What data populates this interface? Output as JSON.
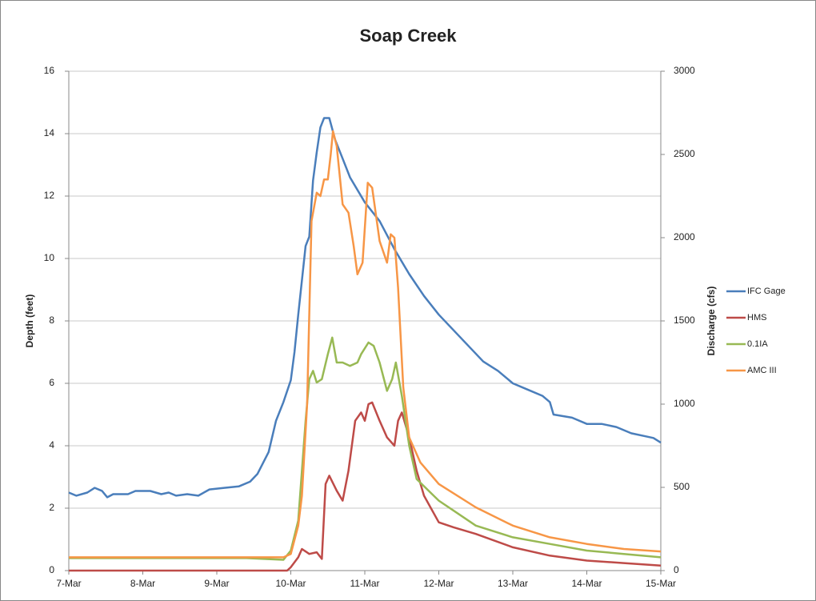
{
  "chart_data": {
    "type": "line",
    "title": "Soap Creek",
    "ylabel": "Depth (feet)",
    "y2label": "Discharge (cfs)",
    "xlim": [
      0,
      8
    ],
    "xticks": [
      {
        "value": 0,
        "label": "7-Mar"
      },
      {
        "value": 1,
        "label": "8-Mar"
      },
      {
        "value": 2,
        "label": "9-Mar"
      },
      {
        "value": 3,
        "label": "10-Mar"
      },
      {
        "value": 4,
        "label": "11-Mar"
      },
      {
        "value": 5,
        "label": "12-Mar"
      },
      {
        "value": 6,
        "label": "13-Mar"
      },
      {
        "value": 7,
        "label": "14-Mar"
      },
      {
        "value": 8,
        "label": "15-Mar"
      }
    ],
    "ylim": [
      0,
      16
    ],
    "yticks": [
      0,
      2,
      4,
      6,
      8,
      10,
      12,
      14,
      16
    ],
    "y2lim": [
      0,
      3000
    ],
    "y2ticks": [
      0,
      500,
      1000,
      1500,
      2000,
      2500,
      3000
    ],
    "grid": true,
    "legend": "right",
    "series": [
      {
        "name": "IFC Gage",
        "color": "#4a7ebb",
        "x": [
          0,
          0.1,
          0.25,
          0.35,
          0.45,
          0.52,
          0.6,
          0.8,
          0.9,
          1.1,
          1.25,
          1.35,
          1.45,
          1.6,
          1.75,
          1.9,
          2.1,
          2.3,
          2.45,
          2.55,
          2.7,
          2.8,
          2.9,
          3.0,
          3.05,
          3.1,
          3.2,
          3.25,
          3.3,
          3.35,
          3.4,
          3.45,
          3.52,
          3.6,
          3.7,
          3.8,
          4.0,
          4.2,
          4.4,
          4.6,
          4.8,
          5.0,
          5.2,
          5.4,
          5.6,
          5.8,
          6.0,
          6.2,
          6.4,
          6.5,
          6.55,
          6.8,
          7.0,
          7.2,
          7.4,
          7.6,
          7.8,
          7.9,
          8.0
        ],
        "values": [
          2.5,
          2.4,
          2.5,
          2.65,
          2.55,
          2.35,
          2.45,
          2.45,
          2.55,
          2.55,
          2.45,
          2.5,
          2.4,
          2.45,
          2.4,
          2.6,
          2.65,
          2.7,
          2.85,
          3.1,
          3.8,
          4.8,
          5.4,
          6.1,
          7.0,
          8.2,
          10.4,
          10.7,
          12.5,
          13.4,
          14.2,
          14.5,
          14.5,
          13.8,
          13.2,
          12.6,
          11.8,
          11.2,
          10.3,
          9.5,
          8.8,
          8.2,
          7.7,
          7.2,
          6.7,
          6.4,
          6.0,
          5.8,
          5.6,
          5.4,
          5.0,
          4.9,
          4.7,
          4.7,
          4.6,
          4.4,
          4.3,
          4.25,
          4.1
        ]
      },
      {
        "name": "HMS",
        "color": "#be4b48",
        "axis": "y2",
        "x": [
          0,
          2.95,
          3.0,
          3.1,
          3.15,
          3.25,
          3.35,
          3.42,
          3.47,
          3.52,
          3.62,
          3.7,
          3.78,
          3.87,
          3.95,
          4.0,
          4.05,
          4.1,
          4.2,
          4.3,
          4.4,
          4.45,
          4.5,
          4.6,
          4.7,
          4.8,
          5.0,
          5.2,
          5.5,
          6.0,
          6.5,
          7.0,
          7.5,
          8.0
        ],
        "values": [
          0,
          0,
          20,
          80,
          130,
          100,
          110,
          70,
          520,
          570,
          480,
          420,
          600,
          900,
          950,
          900,
          1000,
          1010,
          900,
          800,
          750,
          900,
          950,
          800,
          600,
          450,
          290,
          260,
          220,
          140,
          90,
          60,
          45,
          30
        ]
      },
      {
        "name": "0.1IA",
        "color": "#98b954",
        "axis": "y2",
        "x": [
          0,
          2.4,
          2.9,
          3.0,
          3.1,
          3.2,
          3.25,
          3.3,
          3.35,
          3.42,
          3.5,
          3.56,
          3.62,
          3.7,
          3.8,
          3.9,
          3.95,
          4.05,
          4.12,
          4.2,
          4.3,
          4.37,
          4.42,
          4.5,
          4.6,
          4.7,
          5.0,
          5.5,
          6.0,
          6.5,
          7.0,
          7.5,
          8.0
        ],
        "values": [
          75,
          75,
          65,
          120,
          300,
          900,
          1150,
          1200,
          1130,
          1150,
          1300,
          1400,
          1250,
          1250,
          1230,
          1250,
          1300,
          1370,
          1350,
          1250,
          1080,
          1150,
          1250,
          1050,
          750,
          550,
          420,
          270,
          200,
          160,
          120,
          100,
          80
        ]
      },
      {
        "name": "AMC III",
        "color": "#f79646",
        "axis": "y2",
        "x": [
          0,
          2.4,
          2.9,
          3.0,
          3.1,
          3.15,
          3.22,
          3.28,
          3.35,
          3.4,
          3.45,
          3.5,
          3.54,
          3.57,
          3.62,
          3.7,
          3.78,
          3.85,
          3.9,
          3.97,
          4.04,
          4.1,
          4.2,
          4.3,
          4.35,
          4.4,
          4.45,
          4.52,
          4.6,
          4.75,
          5.0,
          5.5,
          6.0,
          6.5,
          7.0,
          7.5,
          8.0
        ],
        "values": [
          80,
          80,
          80,
          100,
          270,
          450,
          1000,
          2100,
          2270,
          2250,
          2350,
          2350,
          2500,
          2640,
          2550,
          2200,
          2150,
          1950,
          1780,
          1850,
          2330,
          2300,
          1980,
          1850,
          2020,
          2000,
          1700,
          1100,
          800,
          650,
          520,
          380,
          270,
          200,
          160,
          130,
          115
        ]
      }
    ]
  }
}
